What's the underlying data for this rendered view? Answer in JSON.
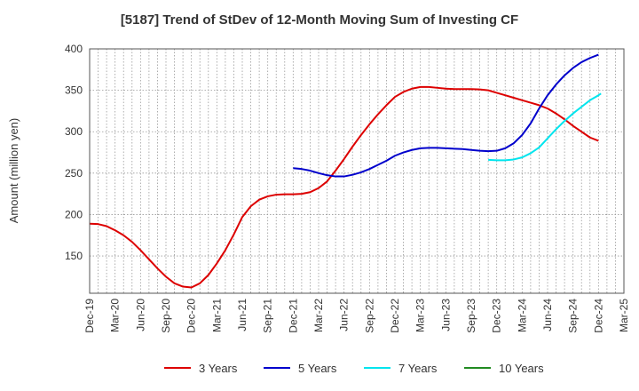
{
  "chart_data": {
    "type": "line",
    "title": "[5187]  Trend of StDev of 12-Month Moving Sum of Investing CF",
    "ylabel": "Amount (million yen)",
    "xlabel": "",
    "ylim": [
      105,
      400
    ],
    "yticks": [
      150,
      200,
      250,
      300,
      350,
      400
    ],
    "x_tick_labels": [
      "Dec-19",
      "Mar-20",
      "Jun-20",
      "Sep-20",
      "Dec-20",
      "Mar-21",
      "Jun-21",
      "Sep-21",
      "Dec-21",
      "Mar-22",
      "Jun-22",
      "Sep-22",
      "Dec-22",
      "Mar-23",
      "Jun-23",
      "Sep-23",
      "Dec-23",
      "Mar-24",
      "Jun-24",
      "Sep-24",
      "Dec-24",
      "Mar-25"
    ],
    "x_range_months": [
      0,
      63
    ],
    "grid": true,
    "legend_position": "bottom",
    "series": [
      {
        "name": "3 Years",
        "color": "#dd0000",
        "points": [
          [
            0,
            189
          ],
          [
            1,
            188.5
          ],
          [
            2,
            186
          ],
          [
            3,
            181
          ],
          [
            4,
            175
          ],
          [
            5,
            167
          ],
          [
            6,
            157
          ],
          [
            7,
            146
          ],
          [
            8,
            135
          ],
          [
            9,
            125
          ],
          [
            10,
            117
          ],
          [
            11,
            113
          ],
          [
            12,
            112
          ],
          [
            13,
            117
          ],
          [
            14,
            127
          ],
          [
            15,
            141
          ],
          [
            16,
            157
          ],
          [
            17,
            176
          ],
          [
            18,
            197
          ],
          [
            19,
            210
          ],
          [
            20,
            218
          ],
          [
            21,
            222
          ],
          [
            22,
            224
          ],
          [
            23,
            224.5
          ],
          [
            24,
            224.5
          ],
          [
            25,
            225
          ],
          [
            26,
            227
          ],
          [
            27,
            232
          ],
          [
            28,
            240
          ],
          [
            29,
            253
          ],
          [
            30,
            267
          ],
          [
            31,
            282
          ],
          [
            32,
            296
          ],
          [
            33,
            309
          ],
          [
            34,
            321
          ],
          [
            35,
            332
          ],
          [
            36,
            342
          ],
          [
            37,
            348
          ],
          [
            38,
            352
          ],
          [
            39,
            354
          ],
          [
            40,
            354
          ],
          [
            41,
            353
          ],
          [
            42,
            352
          ],
          [
            43,
            351.5
          ],
          [
            44,
            351.5
          ],
          [
            45,
            351.5
          ],
          [
            46,
            351
          ],
          [
            47,
            350
          ],
          [
            48,
            347
          ],
          [
            49,
            344
          ],
          [
            50,
            341
          ],
          [
            51,
            338
          ],
          [
            52,
            335
          ],
          [
            53,
            332
          ],
          [
            54,
            328
          ],
          [
            55,
            322
          ],
          [
            56,
            315
          ],
          [
            57,
            307
          ],
          [
            58,
            300
          ],
          [
            59,
            293
          ],
          [
            60,
            289
          ]
        ]
      },
      {
        "name": "5 Years",
        "color": "#0000cc",
        "points": [
          [
            24,
            256
          ],
          [
            25,
            255
          ],
          [
            26,
            253
          ],
          [
            27,
            250
          ],
          [
            28,
            247.5
          ],
          [
            29,
            246
          ],
          [
            30,
            246
          ],
          [
            31,
            248
          ],
          [
            32,
            251
          ],
          [
            33,
            255
          ],
          [
            34,
            260
          ],
          [
            35,
            265
          ],
          [
            36,
            271
          ],
          [
            37,
            275
          ],
          [
            38,
            278
          ],
          [
            39,
            280
          ],
          [
            40,
            280.5
          ],
          [
            41,
            280.5
          ],
          [
            42,
            280
          ],
          [
            43,
            279.5
          ],
          [
            44,
            279
          ],
          [
            45,
            278
          ],
          [
            46,
            277
          ],
          [
            47,
            276.5
          ],
          [
            48,
            277
          ],
          [
            49,
            280
          ],
          [
            50,
            286
          ],
          [
            51,
            296
          ],
          [
            52,
            310
          ],
          [
            53,
            328
          ],
          [
            54,
            344
          ],
          [
            55,
            357
          ],
          [
            56,
            368
          ],
          [
            57,
            377
          ],
          [
            58,
            384
          ],
          [
            59,
            389
          ],
          [
            60,
            393
          ]
        ]
      },
      {
        "name": "7 Years",
        "color": "#00e5ee",
        "points": [
          [
            47,
            266
          ],
          [
            48,
            265.5
          ],
          [
            49,
            265.5
          ],
          [
            50,
            266.5
          ],
          [
            51,
            269
          ],
          [
            52,
            274
          ],
          [
            53,
            281
          ],
          [
            54,
            292
          ],
          [
            55,
            303
          ],
          [
            56,
            313
          ],
          [
            57,
            322
          ],
          [
            58,
            330
          ],
          [
            59,
            338
          ],
          [
            60,
            344
          ],
          [
            60.3,
            346
          ]
        ]
      },
      {
        "name": "10 Years",
        "color": "#228b22",
        "points": []
      }
    ]
  }
}
